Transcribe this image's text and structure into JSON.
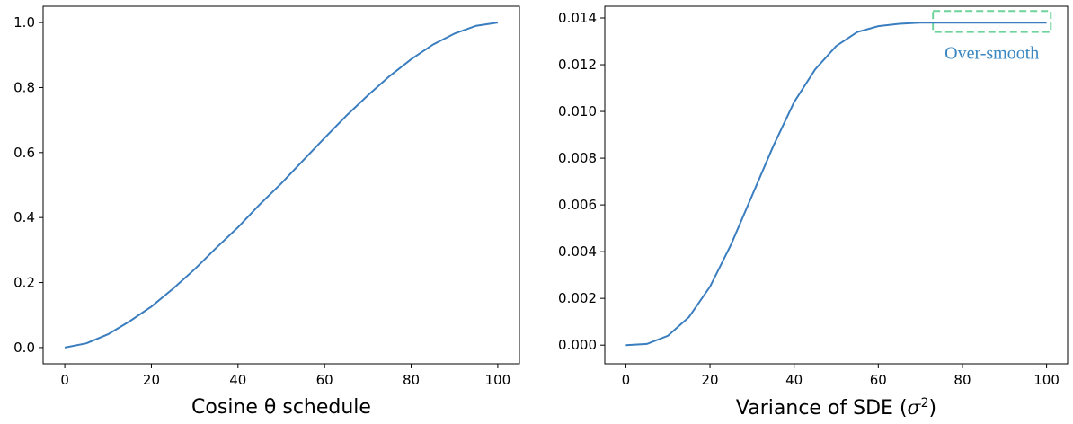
{
  "colors": {
    "line": "#3a7ebf",
    "annotation_text": "#3a86c0",
    "annotation_box": "#6fd39b",
    "axis": "#000000"
  },
  "chart_data": [
    {
      "type": "line",
      "title": "",
      "xlabel": "Cosine θ schedule",
      "ylabel": "",
      "xlim": [
        -5,
        105
      ],
      "ylim": [
        -0.05,
        1.05
      ],
      "xticks": [
        0,
        20,
        40,
        60,
        80,
        100
      ],
      "xtick_labels": [
        "0",
        "20",
        "40",
        "60",
        "80",
        "100"
      ],
      "yticks": [
        0.0,
        0.2,
        0.4,
        0.6,
        0.8,
        1.0
      ],
      "ytick_labels": [
        "0.0",
        "0.2",
        "0.4",
        "0.6",
        "0.8",
        "1.0"
      ],
      "grid": false,
      "series": [
        {
          "x": [
            0,
            5,
            10,
            15,
            20,
            25,
            30,
            35,
            40,
            45,
            50,
            55,
            60,
            65,
            70,
            75,
            80,
            85,
            90,
            95,
            100
          ],
          "y": [
            0.0,
            0.013,
            0.041,
            0.081,
            0.126,
            0.181,
            0.241,
            0.307,
            0.37,
            0.44,
            0.505,
            0.575,
            0.645,
            0.713,
            0.776,
            0.835,
            0.887,
            0.932,
            0.966,
            0.99,
            1.0
          ]
        }
      ]
    },
    {
      "type": "line",
      "title": "",
      "xlabel": "Variance of SDE (σ²)",
      "xlabel_main": "Variance of SDE (",
      "xlabel_symbol": "σ",
      "xlabel_sup": "2",
      "xlabel_close": ")",
      "ylabel": "",
      "xlim": [
        -5,
        105
      ],
      "ylim": [
        -0.0008,
        0.0145
      ],
      "xticks": [
        0,
        20,
        40,
        60,
        80,
        100
      ],
      "xtick_labels": [
        "0",
        "20",
        "40",
        "60",
        "80",
        "100"
      ],
      "yticks": [
        0.0,
        0.002,
        0.004,
        0.006,
        0.008,
        0.01,
        0.012,
        0.014
      ],
      "ytick_labels": [
        "0.000",
        "0.002",
        "0.004",
        "0.006",
        "0.008",
        "0.010",
        "0.012",
        "0.014"
      ],
      "grid": false,
      "series": [
        {
          "x": [
            0,
            5,
            10,
            15,
            20,
            25,
            30,
            35,
            40,
            45,
            50,
            55,
            60,
            65,
            70,
            75,
            80,
            85,
            90,
            95,
            100
          ],
          "y": [
            0.0,
            5e-05,
            0.0004,
            0.0012,
            0.0025,
            0.0043,
            0.0064,
            0.0085,
            0.0104,
            0.0118,
            0.0128,
            0.0134,
            0.01365,
            0.01375,
            0.0138,
            0.0138,
            0.0138,
            0.0138,
            0.0138,
            0.0138,
            0.0138
          ]
        }
      ],
      "annotation": {
        "text": "Over-smooth",
        "x_range": [
          73,
          101
        ],
        "y_range": [
          0.0134,
          0.0143
        ]
      }
    }
  ]
}
